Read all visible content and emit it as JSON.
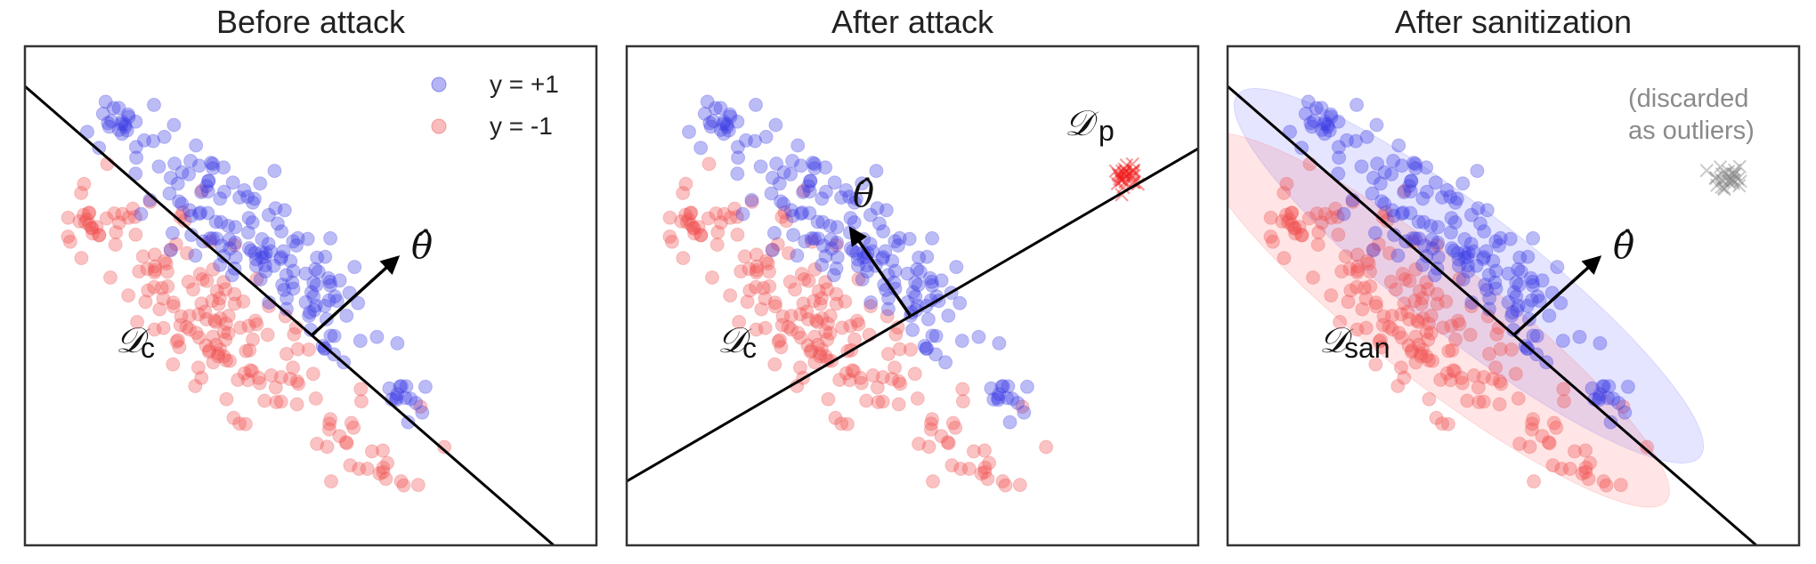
{
  "panels": [
    {
      "title": "Before attack",
      "data_label_main": "𝒟",
      "data_label_sub": "c",
      "theta_label": "θ̂"
    },
    {
      "title": "After attack",
      "data_label_main": "𝒟",
      "data_label_sub": "c",
      "poison_label_main": "𝒟",
      "poison_label_sub": "p",
      "theta_label": "θ̂"
    },
    {
      "title": "After sanitization",
      "data_label_main": "𝒟",
      "data_label_sub": "san",
      "outlier_note_line1": "(discarded",
      "outlier_note_line2": "as outliers)",
      "theta_label": "θ̂"
    }
  ],
  "legend": {
    "positive": "y = +1",
    "negative": "y = -1"
  },
  "colors": {
    "positive": "#3d3de6",
    "negative": "#f05050",
    "outlier": "#8a8a8a",
    "frame": "#333333"
  }
}
